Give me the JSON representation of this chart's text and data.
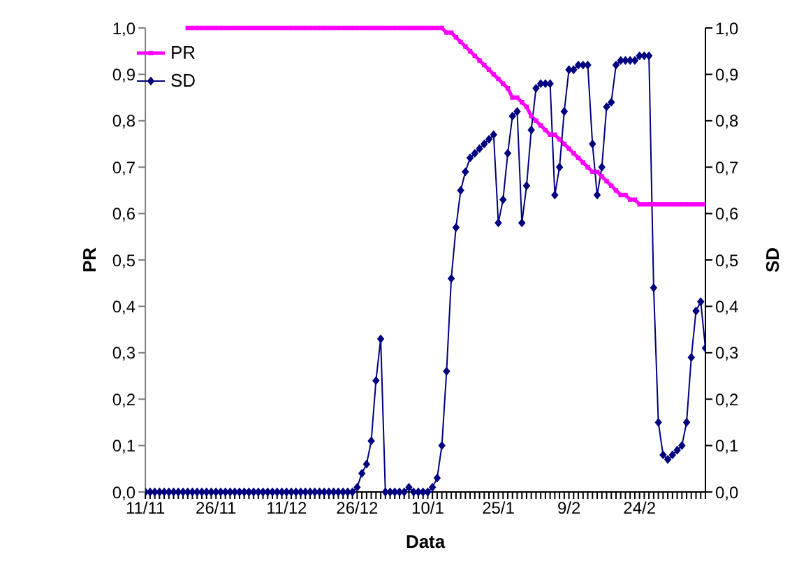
{
  "chart_data": {
    "type": "line",
    "xlabel": "Data",
    "ylabel": "PR",
    "y2label": "SD",
    "categories": [
      "11/11",
      null,
      null,
      null,
      null,
      null,
      null,
      null,
      null,
      null,
      null,
      null,
      null,
      null,
      null,
      "26/11",
      null,
      null,
      null,
      null,
      null,
      null,
      null,
      null,
      null,
      null,
      null,
      null,
      null,
      null,
      "11/12",
      null,
      null,
      null,
      null,
      null,
      null,
      null,
      null,
      null,
      null,
      null,
      null,
      null,
      null,
      "26/12",
      null,
      null,
      null,
      null,
      null,
      null,
      null,
      null,
      null,
      null,
      null,
      null,
      null,
      null,
      "10/1",
      null,
      null,
      null,
      null,
      null,
      null,
      null,
      null,
      null,
      null,
      null,
      null,
      null,
      null,
      "25/1",
      null,
      null,
      null,
      null,
      null,
      null,
      null,
      null,
      null,
      null,
      null,
      null,
      null,
      null,
      "9/2",
      null,
      null,
      null,
      null,
      null,
      null,
      null,
      null,
      null,
      null,
      null,
      null,
      null,
      null,
      "24/2",
      null,
      null,
      null,
      null,
      null,
      null,
      null,
      null,
      null,
      null,
      null,
      null,
      null,
      null
    ],
    "series": [
      {
        "name": "PR",
        "color": "#ff00ff",
        "marker": "square",
        "values": [
          null,
          null,
          null,
          null,
          null,
          null,
          null,
          null,
          null,
          1,
          1,
          1,
          1,
          1,
          1,
          1,
          1,
          1,
          1,
          1,
          1,
          1,
          1,
          1,
          1,
          1,
          1,
          1,
          1,
          1,
          1,
          1,
          1,
          1,
          1,
          1,
          1,
          1,
          1,
          1,
          1,
          1,
          1,
          1,
          1,
          1,
          1,
          1,
          1,
          1,
          1,
          1,
          1,
          1,
          1,
          1,
          1,
          1,
          1,
          1,
          1,
          1,
          1,
          1,
          0.99,
          0.99,
          0.98,
          0.97,
          0.96,
          0.95,
          0.94,
          0.93,
          0.92,
          0.91,
          0.9,
          0.89,
          0.88,
          0.87,
          0.85,
          0.85,
          0.84,
          0.83,
          0.81,
          0.8,
          0.79,
          0.78,
          0.77,
          0.77,
          0.76,
          0.75,
          0.74,
          0.73,
          0.72,
          0.71,
          0.7,
          0.69,
          0.69,
          0.68,
          0.67,
          0.66,
          0.65,
          0.64,
          0.64,
          0.63,
          0.63,
          0.62,
          0.62,
          0.62,
          0.62,
          0.62,
          0.62,
          0.62,
          0.62,
          0.62,
          0.62,
          0.62,
          0.62,
          0.62,
          0.62,
          0.62
        ]
      },
      {
        "name": "SD",
        "color": "#000080",
        "marker": "diamond",
        "axis": "y2",
        "values": [
          0,
          0,
          0,
          0,
          0,
          0,
          0,
          0,
          0,
          0,
          0,
          0,
          0,
          0,
          0,
          0,
          0,
          0,
          0,
          0,
          0,
          0,
          0,
          0,
          0,
          0,
          0,
          0,
          0,
          0,
          0,
          0,
          0,
          0,
          0,
          0,
          0,
          0,
          0,
          0,
          0,
          0,
          0,
          0,
          0,
          0.01,
          0.04,
          0.06,
          0.11,
          0.24,
          0.33,
          0,
          0,
          0,
          0,
          0,
          0.01,
          0,
          0,
          0,
          0,
          0.01,
          0.03,
          0.1,
          0.26,
          0.46,
          0.57,
          0.65,
          0.69,
          0.72,
          0.73,
          0.74,
          0.75,
          0.76,
          0.77,
          0.58,
          0.63,
          0.73,
          0.81,
          0.82,
          0.58,
          0.66,
          0.78,
          0.87,
          0.88,
          0.88,
          0.88,
          0.64,
          0.7,
          0.82,
          0.91,
          0.91,
          0.92,
          0.92,
          0.92,
          0.75,
          0.64,
          0.7,
          0.83,
          0.84,
          0.92,
          0.93,
          0.93,
          0.93,
          0.93,
          0.94,
          0.94,
          0.94,
          0.44,
          0.15,
          0.08,
          0.07,
          0.08,
          0.09,
          0.1,
          0.15,
          0.29,
          0.39,
          0.41,
          0.31
        ]
      }
    ],
    "ylim": [
      0,
      1
    ],
    "yticks": [
      {
        "value": 0,
        "label": "0,0"
      },
      {
        "value": 0.1,
        "label": "0,1"
      },
      {
        "value": 0.2,
        "label": "0,2"
      },
      {
        "value": 0.3,
        "label": "0,3"
      },
      {
        "value": 0.4,
        "label": "0,4"
      },
      {
        "value": 0.5,
        "label": "0,5"
      },
      {
        "value": 0.6,
        "label": "0,6"
      },
      {
        "value": 0.7,
        "label": "0,7"
      },
      {
        "value": 0.8,
        "label": "0,8"
      },
      {
        "value": 0.9,
        "label": "0,9"
      },
      {
        "value": 1,
        "label": "1,0"
      }
    ],
    "y2lim": [
      0,
      1
    ],
    "y2ticks": [
      {
        "value": 0,
        "label": "0,0"
      },
      {
        "value": 0.1,
        "label": "0,1"
      },
      {
        "value": 0.2,
        "label": "0,2"
      },
      {
        "value": 0.3,
        "label": "0,3"
      },
      {
        "value": 0.4,
        "label": "0,4"
      },
      {
        "value": 0.5,
        "label": "0,5"
      },
      {
        "value": 0.6,
        "label": "0,6"
      },
      {
        "value": 0.7,
        "label": "0,7"
      },
      {
        "value": 0.8,
        "label": "0,8"
      },
      {
        "value": 0.9,
        "label": "0,9"
      },
      {
        "value": 1,
        "label": "1,0"
      }
    ],
    "grid": false,
    "legend": "top left"
  }
}
